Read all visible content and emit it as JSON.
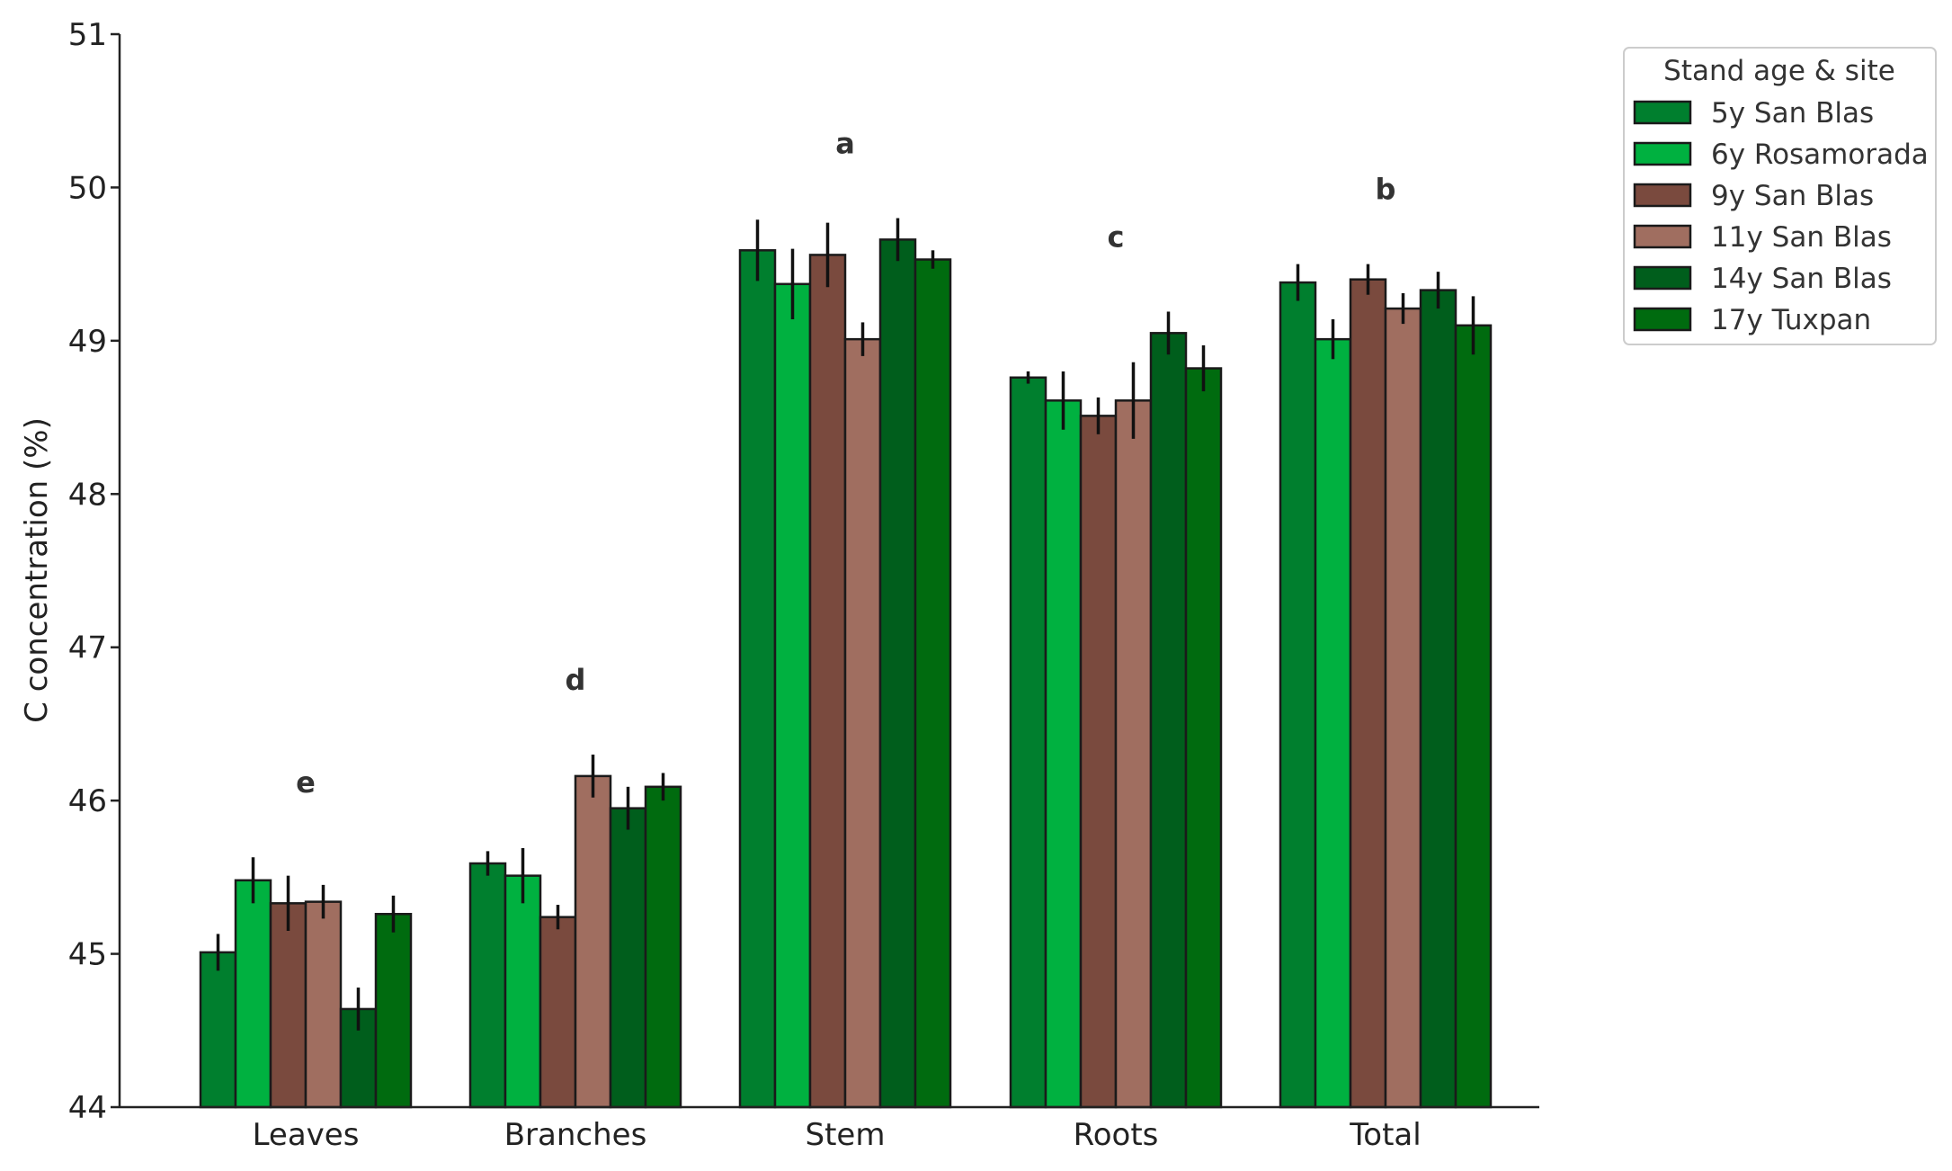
{
  "chart_data": {
    "type": "bar",
    "title": "",
    "xlabel": "",
    "ylabel": "C concentration (%)",
    "ylim": [
      44,
      51
    ],
    "yticks": [
      44,
      45,
      46,
      47,
      48,
      49,
      50,
      51
    ],
    "categories": [
      "Leaves",
      "Branches",
      "Stem",
      "Roots",
      "Total"
    ],
    "significance_letters": [
      "e",
      "d",
      "a",
      "c",
      "b"
    ],
    "grid": false,
    "legend": {
      "title": "Stand age & site",
      "position": "top-right, outside plot"
    },
    "series": [
      {
        "name": "5y San Blas",
        "color": "#007F2E",
        "values": [
          45.01,
          45.59,
          49.59,
          48.76,
          49.38
        ],
        "errors": [
          0.12,
          0.08,
          0.2,
          0.04,
          0.12
        ]
      },
      {
        "name": "6y Rosamorada",
        "color": "#00B140",
        "values": [
          45.48,
          45.51,
          49.37,
          48.61,
          49.01
        ],
        "errors": [
          0.15,
          0.18,
          0.23,
          0.19,
          0.13
        ]
      },
      {
        "name": "9y San Blas",
        "color": "#7A4A3E",
        "values": [
          45.33,
          45.24,
          49.56,
          48.51,
          49.4
        ],
        "errors": [
          0.18,
          0.08,
          0.21,
          0.12,
          0.1
        ]
      },
      {
        "name": "11y San Blas",
        "color": "#A06E60",
        "values": [
          45.34,
          46.16,
          49.01,
          48.61,
          49.21
        ],
        "errors": [
          0.11,
          0.14,
          0.11,
          0.25,
          0.1
        ]
      },
      {
        "name": "14y San Blas",
        "color": "#005E1C",
        "values": [
          44.64,
          45.95,
          49.66,
          49.05,
          49.33
        ],
        "errors": [
          0.14,
          0.14,
          0.14,
          0.14,
          0.12
        ]
      },
      {
        "name": "17y Tuxpan",
        "color": "#006B0F",
        "values": [
          45.26,
          46.09,
          49.53,
          48.82,
          49.1
        ],
        "errors": [
          0.12,
          0.09,
          0.06,
          0.15,
          0.19
        ]
      }
    ]
  }
}
